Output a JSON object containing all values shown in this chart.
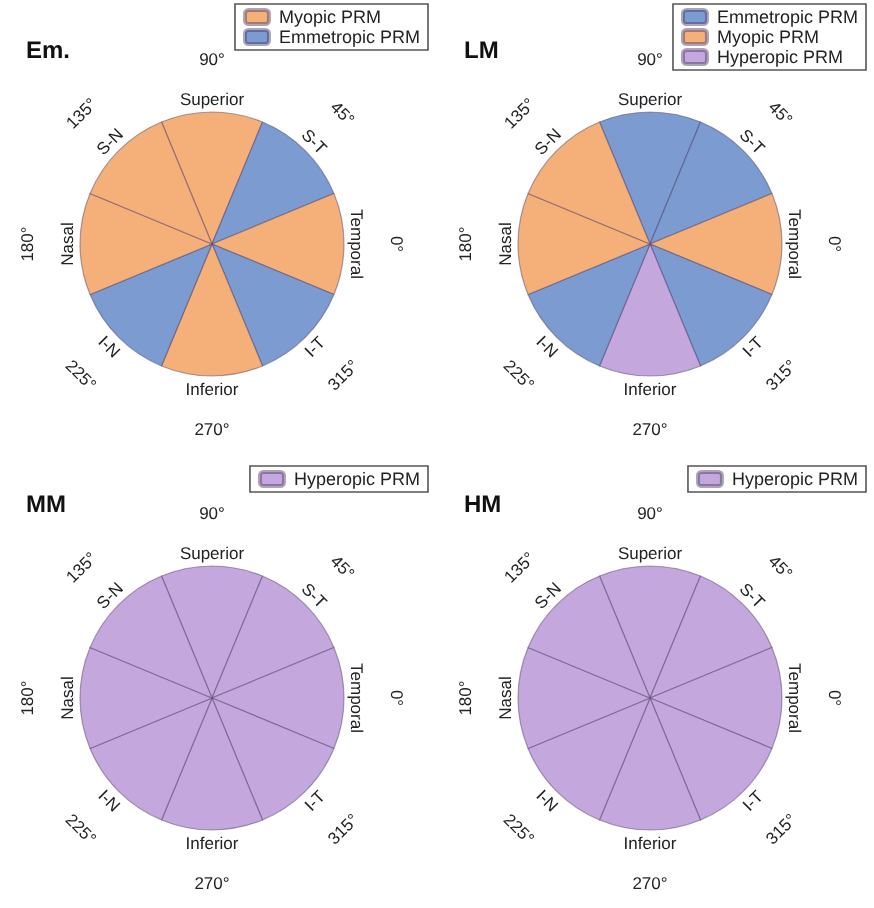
{
  "chart_data": [
    {
      "type": "pie",
      "title": "Em.",
      "legend": "top right",
      "categories": [
        "Myopic PRM",
        "Emmetropic PRM",
        null,
        null,
        null,
        null,
        null,
        null
      ],
      "values": [
        12.5,
        12.5,
        12.5,
        12.5,
        12.5,
        12.5,
        12.5,
        12.5
      ],
      "colors": [
        "#f5b07a",
        "#7b9bd1",
        "#f5b07a",
        "#7b9bd1",
        "#f5b07a",
        "#7b9bd1",
        "#f5b07a",
        "#f5b07a"
      ],
      "annotations": [
        "Superior",
        "S-T",
        "Temporal",
        "I-T",
        "Inferior",
        "I-N",
        "Nasal",
        "S-N",
        "90°",
        "45°",
        "0°",
        "315°",
        "270°",
        "225°",
        "180°",
        "135°"
      ]
    },
    {
      "type": "pie",
      "title": "LM",
      "legend": "top right",
      "categories": [
        "Emmetropic PRM",
        null,
        "Myopic PRM",
        null,
        "Hyperopic PRM",
        null,
        null,
        null
      ],
      "values": [
        12.5,
        12.5,
        12.5,
        12.5,
        12.5,
        12.5,
        12.5,
        12.5
      ],
      "colors": [
        "#7b9bd1",
        "#7b9bd1",
        "#f5b07a",
        "#7b9bd1",
        "#c4a7dd",
        "#7b9bd1",
        "#f5b07a",
        "#f5b07a"
      ],
      "annotations": [
        "Superior",
        "S-T",
        "Temporal",
        "I-T",
        "Inferior",
        "I-N",
        "Nasal",
        "S-N",
        "90°",
        "45°",
        "0°",
        "315°",
        "270°",
        "225°",
        "180°",
        "135°"
      ]
    },
    {
      "type": "pie",
      "title": "MM",
      "legend": "top right",
      "categories": [
        "Hyperopic PRM",
        null,
        null,
        null,
        null,
        null,
        null,
        null
      ],
      "values": [
        12.5,
        12.5,
        12.5,
        12.5,
        12.5,
        12.5,
        12.5,
        12.5
      ],
      "colors": [
        "#c4a7dd",
        "#c4a7dd",
        "#c4a7dd",
        "#c4a7dd",
        "#c4a7dd",
        "#c4a7dd",
        "#c4a7dd",
        "#c4a7dd"
      ],
      "annotations": [
        "Superior",
        "S-T",
        "Temporal",
        "I-T",
        "Inferior",
        "I-N",
        "Nasal",
        "S-N",
        "90°",
        "45°",
        "0°",
        "315°",
        "270°",
        "225°",
        "180°",
        "135°"
      ]
    },
    {
      "type": "pie",
      "title": "HM",
      "legend": "top right",
      "categories": [
        "Hyperopic PRM",
        null,
        null,
        null,
        null,
        null,
        null,
        null
      ],
      "values": [
        12.5,
        12.5,
        12.5,
        12.5,
        12.5,
        12.5,
        12.5,
        12.5
      ],
      "colors": [
        "#c4a7dd",
        "#c4a7dd",
        "#c4a7dd",
        "#c4a7dd",
        "#c4a7dd",
        "#c4a7dd",
        "#c4a7dd",
        "#c4a7dd"
      ],
      "annotations": [
        "Superior",
        "S-T",
        "Temporal",
        "I-T",
        "Inferior",
        "I-N",
        "Nasal",
        "S-N",
        "90°",
        "45°",
        "0°",
        "315°",
        "270°",
        "225°",
        "180°",
        "135°"
      ]
    }
  ]
}
